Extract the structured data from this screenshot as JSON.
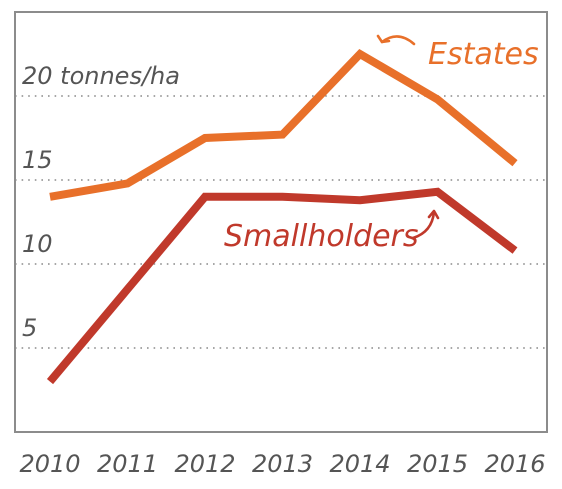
{
  "chart_data": {
    "type": "line",
    "title": "",
    "xlabel": "",
    "ylabel": "",
    "x": [
      "2010",
      "2011",
      "2012",
      "2013",
      "2014",
      "2015",
      "2016"
    ],
    "ylim": [
      0,
      25
    ],
    "y_ticks": [
      {
        "value": 5,
        "label": "5"
      },
      {
        "value": 10,
        "label": "10"
      },
      {
        "value": 15,
        "label": "15"
      },
      {
        "value": 20,
        "label": "20 tonnes/ha"
      }
    ],
    "grid": true,
    "series": [
      {
        "name": "Estates",
        "color": "#e8702a",
        "values": [
          14.0,
          14.8,
          17.5,
          17.7,
          22.5,
          19.8,
          16.0
        ]
      },
      {
        "name": "Smallholders",
        "color": "#c0392b",
        "values": [
          3.0,
          8.5,
          14.0,
          14.0,
          13.8,
          14.3,
          10.8
        ]
      }
    ]
  }
}
